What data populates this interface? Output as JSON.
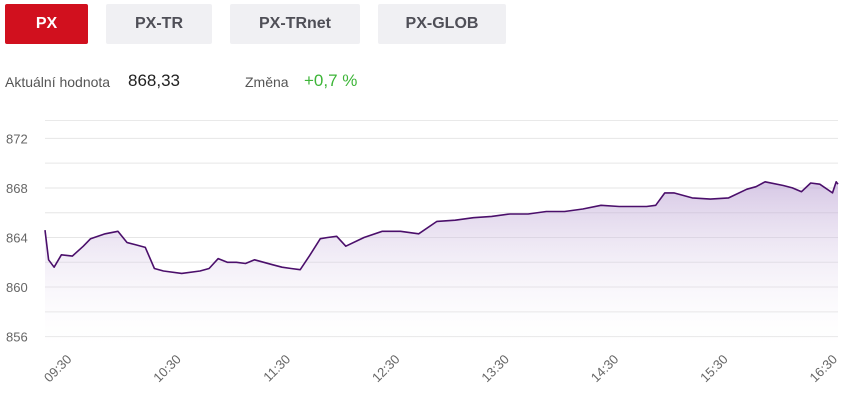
{
  "tabs": [
    {
      "label": "PX",
      "active": true
    },
    {
      "label": "PX-TR",
      "active": false
    },
    {
      "label": "PX-TRnet",
      "active": false
    },
    {
      "label": "PX-GLOB",
      "active": false
    }
  ],
  "info": {
    "current_label": "Aktuální hodnota",
    "current_value": "868,33",
    "change_label": "Změna",
    "change_value": "+0,7 %"
  },
  "colors": {
    "accent": "#d1101e",
    "tab_inactive_bg": "#f0f0f3",
    "line": "#4b0f6b",
    "positive": "#3db538",
    "grid": "#e6e6e6"
  },
  "chart_data": {
    "type": "area",
    "title": "",
    "xlabel": "",
    "ylabel": "",
    "x_ticks": [
      "09:30",
      "10:30",
      "11:30",
      "12:30",
      "13:30",
      "14:30",
      "15:30",
      "16:30"
    ],
    "y_ticks": [
      "872",
      "868",
      "864",
      "860",
      "856"
    ],
    "ylim": [
      855,
      873
    ],
    "xlim": [
      "09:15",
      "16:30"
    ],
    "grid": true,
    "x": [
      "09:15",
      "09:17",
      "09:20",
      "09:24",
      "09:30",
      "09:36",
      "09:40",
      "09:48",
      "09:55",
      "10:00",
      "10:05",
      "10:10",
      "10:15",
      "10:20",
      "10:30",
      "10:40",
      "10:45",
      "10:50",
      "10:55",
      "11:00",
      "11:05",
      "11:10",
      "11:20",
      "11:25",
      "11:30",
      "11:35",
      "11:40",
      "11:46",
      "11:50",
      "11:55",
      "12:00",
      "12:10",
      "12:20",
      "12:30",
      "12:40",
      "12:50",
      "13:00",
      "13:10",
      "13:20",
      "13:30",
      "13:40",
      "13:50",
      "14:00",
      "14:10",
      "14:20",
      "14:30",
      "14:40",
      "14:45",
      "14:50",
      "14:55",
      "15:00",
      "15:10",
      "15:20",
      "15:30",
      "15:40",
      "15:45",
      "15:50",
      "16:00",
      "16:05",
      "16:10",
      "16:15",
      "16:20",
      "16:27",
      "16:29",
      "16:30"
    ],
    "values": [
      864.6,
      862.2,
      861.6,
      862.6,
      862.5,
      863.3,
      863.9,
      864.3,
      864.5,
      863.6,
      863.4,
      863.2,
      861.5,
      861.3,
      861.1,
      861.3,
      861.5,
      862.3,
      862.0,
      862.0,
      861.9,
      862.2,
      861.8,
      861.6,
      861.5,
      861.4,
      862.5,
      863.9,
      864.0,
      864.1,
      863.3,
      864.0,
      864.5,
      864.5,
      864.3,
      865.3,
      865.4,
      865.6,
      865.7,
      865.9,
      865.9,
      866.1,
      866.1,
      866.3,
      866.6,
      866.5,
      866.5,
      866.5,
      866.6,
      867.6,
      867.6,
      867.2,
      867.1,
      867.2,
      867.9,
      868.1,
      868.5,
      868.2,
      868.0,
      867.7,
      868.4,
      868.3,
      867.6,
      868.5,
      868.3
    ]
  }
}
